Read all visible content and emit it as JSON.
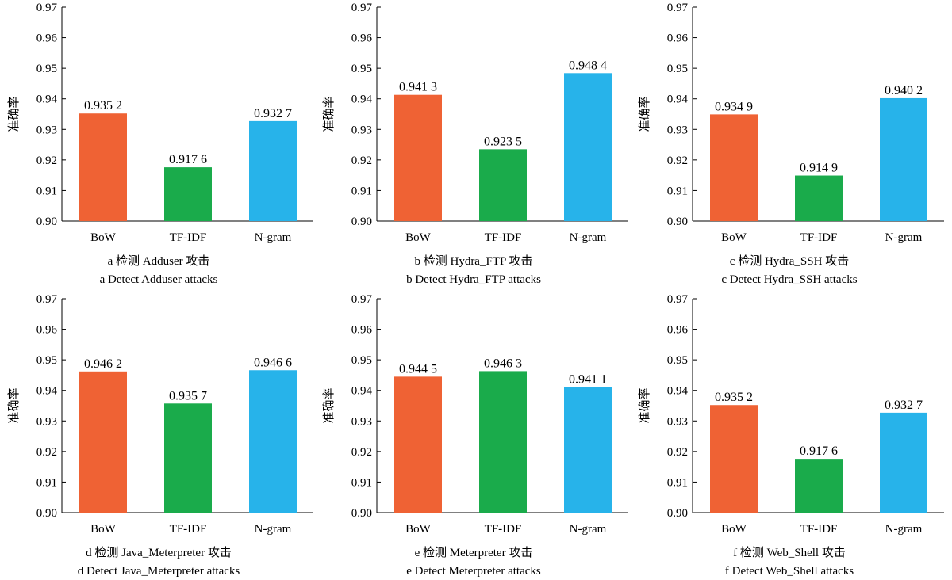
{
  "colors": {
    "BoW": "#ef6234",
    "TF-IDF": "#1aab4b",
    "N-gram": "#27b3ea"
  },
  "chart_data": [
    {
      "type": "bar",
      "panel": "a",
      "categories": [
        "BoW",
        "TF-IDF",
        "N-gram"
      ],
      "values": [
        0.9352,
        0.9176,
        0.9327
      ],
      "value_labels": [
        "0.935 2",
        "0.917 6",
        "0.932 7"
      ],
      "ylabel": "准确率",
      "ylim": [
        0.9,
        0.97
      ],
      "yticks": [
        "0.90",
        "0.91",
        "0.92",
        "0.93",
        "0.94",
        "0.95",
        "0.96",
        "0.97"
      ],
      "caption_cn": "a 检测 Adduser 攻击",
      "caption_en": "a  Detect Adduser attacks"
    },
    {
      "type": "bar",
      "panel": "b",
      "categories": [
        "BoW",
        "TF-IDF",
        "N-gram"
      ],
      "values": [
        0.9413,
        0.9235,
        0.9484
      ],
      "value_labels": [
        "0.941 3",
        "0.923 5",
        "0.948 4"
      ],
      "ylabel": "准确率",
      "ylim": [
        0.9,
        0.97
      ],
      "yticks": [
        "0.90",
        "0.91",
        "0.92",
        "0.93",
        "0.94",
        "0.95",
        "0.96",
        "0.97"
      ],
      "caption_cn": "b 检测 Hydra_FTP 攻击",
      "caption_en": "b  Detect Hydra_FTP attacks"
    },
    {
      "type": "bar",
      "panel": "c",
      "categories": [
        "BoW",
        "TF-IDF",
        "N-gram"
      ],
      "values": [
        0.9349,
        0.9149,
        0.9402
      ],
      "value_labels": [
        "0.934 9",
        "0.914 9",
        "0.940 2"
      ],
      "ylabel": "准确率",
      "ylim": [
        0.9,
        0.97
      ],
      "yticks": [
        "0.90",
        "0.91",
        "0.92",
        "0.93",
        "0.94",
        "0.95",
        "0.96",
        "0.97"
      ],
      "caption_cn": "c 检测 Hydra_SSH 攻击",
      "caption_en": "c  Detect Hydra_SSH attacks"
    },
    {
      "type": "bar",
      "panel": "d",
      "categories": [
        "BoW",
        "TF-IDF",
        "N-gram"
      ],
      "values": [
        0.9462,
        0.9357,
        0.9466
      ],
      "value_labels": [
        "0.946 2",
        "0.935 7",
        "0.946 6"
      ],
      "ylabel": "准确率",
      "ylim": [
        0.9,
        0.97
      ],
      "yticks": [
        "0.90",
        "0.91",
        "0.92",
        "0.93",
        "0.94",
        "0.95",
        "0.96",
        "0.97"
      ],
      "caption_cn": "d 检测 Java_Meterpreter 攻击",
      "caption_en": "d  Detect Java_Meterpreter attacks"
    },
    {
      "type": "bar",
      "panel": "e",
      "categories": [
        "BoW",
        "TF-IDF",
        "N-gram"
      ],
      "values": [
        0.9445,
        0.9463,
        0.9411
      ],
      "value_labels": [
        "0.944 5",
        "0.946 3",
        "0.941 1"
      ],
      "ylabel": "准确率",
      "ylim": [
        0.9,
        0.97
      ],
      "yticks": [
        "0.90",
        "0.91",
        "0.92",
        "0.93",
        "0.94",
        "0.95",
        "0.96",
        "0.97"
      ],
      "caption_cn": "e 检测 Meterpreter 攻击",
      "caption_en": "e  Detect Meterpreter attacks"
    },
    {
      "type": "bar",
      "panel": "f",
      "categories": [
        "BoW",
        "TF-IDF",
        "N-gram"
      ],
      "values": [
        0.9352,
        0.9176,
        0.9327
      ],
      "value_labels": [
        "0.935 2",
        "0.917 6",
        "0.932 7"
      ],
      "ylabel": "准确率",
      "ylim": [
        0.9,
        0.97
      ],
      "yticks": [
        "0.90",
        "0.91",
        "0.92",
        "0.93",
        "0.94",
        "0.95",
        "0.96",
        "0.97"
      ],
      "caption_cn": "f 检测 Web_Shell 攻击",
      "caption_en": "f  Detect Web_Shell attacks"
    }
  ]
}
